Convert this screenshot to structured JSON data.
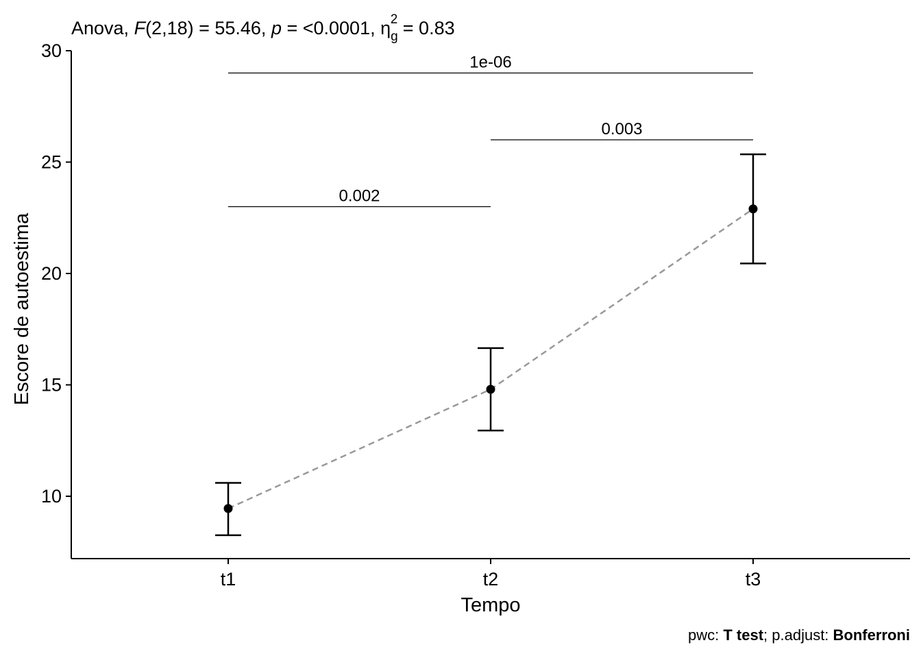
{
  "chart_data": {
    "type": "line",
    "title": {
      "prefix": "Anova, ",
      "f_symbol": "F",
      "f_args": "(2,18) = 55.46, ",
      "p_symbol": "p",
      "p_text": " = <0.0001, ",
      "eta_symbol": "η",
      "eta_sub": "g",
      "eta_sup": "2",
      "eta_text": " = 0.83"
    },
    "caption": {
      "part1": "pwc: ",
      "part2": "T test",
      "part3": "; p.adjust: ",
      "part4": "Bonferroni"
    },
    "xlabel": "Tempo",
    "ylabel": "Escore de autoestima",
    "categories": [
      "t1",
      "t2",
      "t3"
    ],
    "ylim": [
      7.2,
      30
    ],
    "yticks": [
      10,
      15,
      20,
      25,
      30
    ],
    "series": [
      {
        "values": [
          9.45,
          14.8,
          22.9
        ],
        "err_low": [
          8.25,
          12.95,
          20.45
        ],
        "err_high": [
          10.6,
          16.65,
          25.35
        ],
        "line_color": "#999999",
        "point_color": "#000000"
      }
    ],
    "comparisons": [
      {
        "from": "t1",
        "to": "t3",
        "y": 29,
        "label": "1e-06"
      },
      {
        "from": "t2",
        "to": "t3",
        "y": 26,
        "label": "0.003"
      },
      {
        "from": "t1",
        "to": "t2",
        "y": 23,
        "label": "0.002"
      }
    ],
    "grid": false,
    "legend": "none"
  }
}
